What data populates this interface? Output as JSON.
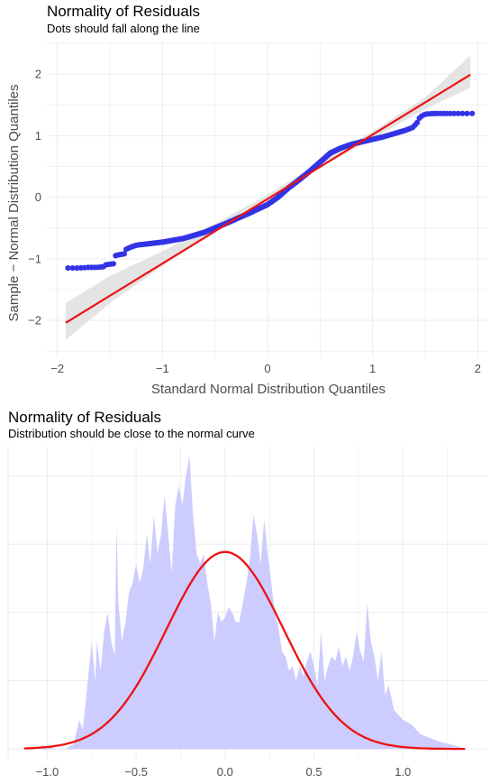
{
  "chart_data": [
    {
      "type": "scatter",
      "title": "Normality of Residuals",
      "subtitle": "Dots should fall along the line",
      "xlabel": "Standard Normal Distribution Quantiles",
      "ylabel": "Sample − Normal Distribution Quantiles",
      "xlim": [
        -2.1,
        2.1
      ],
      "ylim": [
        -2.6,
        2.5
      ],
      "xticks": [
        -2,
        -1,
        0,
        1,
        2
      ],
      "xtick_labels": [
        "−2",
        "−1",
        "0",
        "1",
        "2"
      ],
      "yticks": [
        -2,
        -1,
        0,
        1,
        2
      ],
      "ytick_labels": [
        "−2",
        "−1",
        "0",
        "1",
        "2"
      ],
      "grid": true,
      "point_color": "#3333e6",
      "line_color": "#ee1111",
      "band_color": "#d9d9d9",
      "reference_line": {
        "x": [
          -1.92,
          1.93
        ],
        "y": [
          -2.04,
          1.99
        ]
      },
      "confidence_band": {
        "x": [
          -1.92,
          -1.5,
          -1.0,
          -0.5,
          0.0,
          0.5,
          1.0,
          1.5,
          1.93
        ],
        "lower": [
          -2.32,
          -1.72,
          -1.12,
          -0.56,
          -0.04,
          0.48,
          0.95,
          1.43,
          1.78
        ],
        "upper": [
          -1.72,
          -1.28,
          -0.88,
          -0.43,
          0.04,
          0.57,
          1.07,
          1.62,
          2.3
        ]
      },
      "points_profile": {
        "x": [
          -1.92,
          -1.8,
          -1.7,
          -1.62,
          -1.56,
          -1.55,
          -1.46,
          -1.45,
          -1.4,
          -1.36,
          -1.35,
          -1.3,
          -1.25,
          -1.15,
          -1.0,
          -0.8,
          -0.6,
          -0.4,
          -0.2,
          0.0,
          0.1,
          0.2,
          0.3,
          0.4,
          0.5,
          0.6,
          0.7,
          0.8,
          0.9,
          1.0,
          1.1,
          1.2,
          1.3,
          1.38,
          1.42,
          1.45,
          1.5,
          1.6,
          1.7,
          1.8,
          1.93
        ],
        "y": [
          -1.15,
          -1.15,
          -1.14,
          -1.14,
          -1.13,
          -1.1,
          -1.08,
          -0.95,
          -0.93,
          -0.92,
          -0.85,
          -0.81,
          -0.78,
          -0.76,
          -0.73,
          -0.67,
          -0.57,
          -0.43,
          -0.28,
          -0.12,
          0.0,
          0.15,
          0.28,
          0.42,
          0.57,
          0.72,
          0.8,
          0.86,
          0.9,
          0.94,
          0.98,
          1.03,
          1.08,
          1.13,
          1.2,
          1.3,
          1.35,
          1.36,
          1.36,
          1.36,
          1.36
        ]
      },
      "n_points": 330
    },
    {
      "type": "area",
      "title": "Normality of Residuals",
      "subtitle": "Distribution should be close to the normal curve",
      "xlim": [
        -1.22,
        1.48
      ],
      "ylim": [
        -0.1,
        3.1
      ],
      "xticks": [
        -1.0,
        -0.5,
        0.0,
        0.5,
        1.0
      ],
      "xtick_labels": [
        "−1.0",
        "−0.5",
        "0.0",
        "0.5",
        "1.0"
      ],
      "ygrid": [
        0.0,
        0.7,
        1.4,
        2.1,
        2.8
      ],
      "grid": true,
      "fill_color": "#ccccff",
      "curve_color": "#ee1111",
      "density": {
        "x": [
          -1.13,
          -1.05,
          -1.03,
          -0.95,
          -0.9,
          -0.85,
          -0.82,
          -0.8,
          -0.78,
          -0.75,
          -0.73,
          -0.72,
          -0.7,
          -0.68,
          -0.66,
          -0.64,
          -0.62,
          -0.61,
          -0.6,
          -0.58,
          -0.56,
          -0.54,
          -0.52,
          -0.5,
          -0.48,
          -0.46,
          -0.44,
          -0.42,
          -0.4,
          -0.38,
          -0.36,
          -0.34,
          -0.32,
          -0.3,
          -0.28,
          -0.26,
          -0.24,
          -0.22,
          -0.2,
          -0.19,
          -0.18,
          -0.16,
          -0.14,
          -0.12,
          -0.1,
          -0.08,
          -0.06,
          -0.04,
          -0.02,
          0.0,
          0.02,
          0.04,
          0.06,
          0.08,
          0.1,
          0.12,
          0.14,
          0.16,
          0.18,
          0.2,
          0.22,
          0.24,
          0.26,
          0.28,
          0.3,
          0.32,
          0.34,
          0.36,
          0.38,
          0.4,
          0.42,
          0.44,
          0.46,
          0.48,
          0.5,
          0.52,
          0.54,
          0.56,
          0.58,
          0.6,
          0.62,
          0.64,
          0.66,
          0.68,
          0.7,
          0.72,
          0.74,
          0.76,
          0.78,
          0.8,
          0.82,
          0.84,
          0.86,
          0.88,
          0.9,
          0.92,
          0.95,
          1.0,
          1.05,
          1.1,
          1.2,
          1.3,
          1.35
        ],
        "y": [
          0.0,
          0.0,
          0.04,
          0.0,
          0.0,
          0.05,
          0.3,
          0.2,
          0.55,
          1.1,
          0.7,
          1.1,
          0.8,
          1.2,
          1.4,
          1.1,
          0.95,
          2.3,
          1.5,
          1.1,
          1.3,
          1.6,
          1.7,
          1.9,
          1.7,
          1.85,
          2.2,
          1.9,
          2.4,
          2.0,
          2.2,
          2.6,
          2.2,
          1.8,
          2.5,
          2.7,
          2.5,
          2.8,
          3.0,
          2.7,
          2.4,
          2.0,
          1.9,
          2.0,
          1.7,
          1.5,
          1.1,
          1.4,
          1.3,
          1.35,
          1.45,
          1.4,
          1.3,
          1.3,
          1.5,
          1.7,
          1.95,
          2.4,
          2.2,
          1.9,
          2.35,
          2.0,
          1.7,
          1.4,
          1.25,
          1.0,
          0.95,
          0.8,
          0.85,
          0.7,
          0.85,
          0.75,
          0.9,
          1.0,
          0.85,
          0.65,
          1.2,
          0.7,
          0.85,
          0.95,
          0.9,
          1.05,
          0.85,
          0.95,
          0.8,
          0.95,
          1.2,
          1.0,
          0.9,
          1.5,
          1.1,
          0.95,
          0.7,
          1.0,
          0.55,
          0.65,
          0.4,
          0.3,
          0.25,
          0.15,
          0.08,
          0.03,
          0.0
        ]
      },
      "normal_curve": {
        "mean": 0.0,
        "sd": 0.33,
        "peak": 2.02,
        "x_range": [
          -1.13,
          1.35
        ]
      }
    }
  ]
}
